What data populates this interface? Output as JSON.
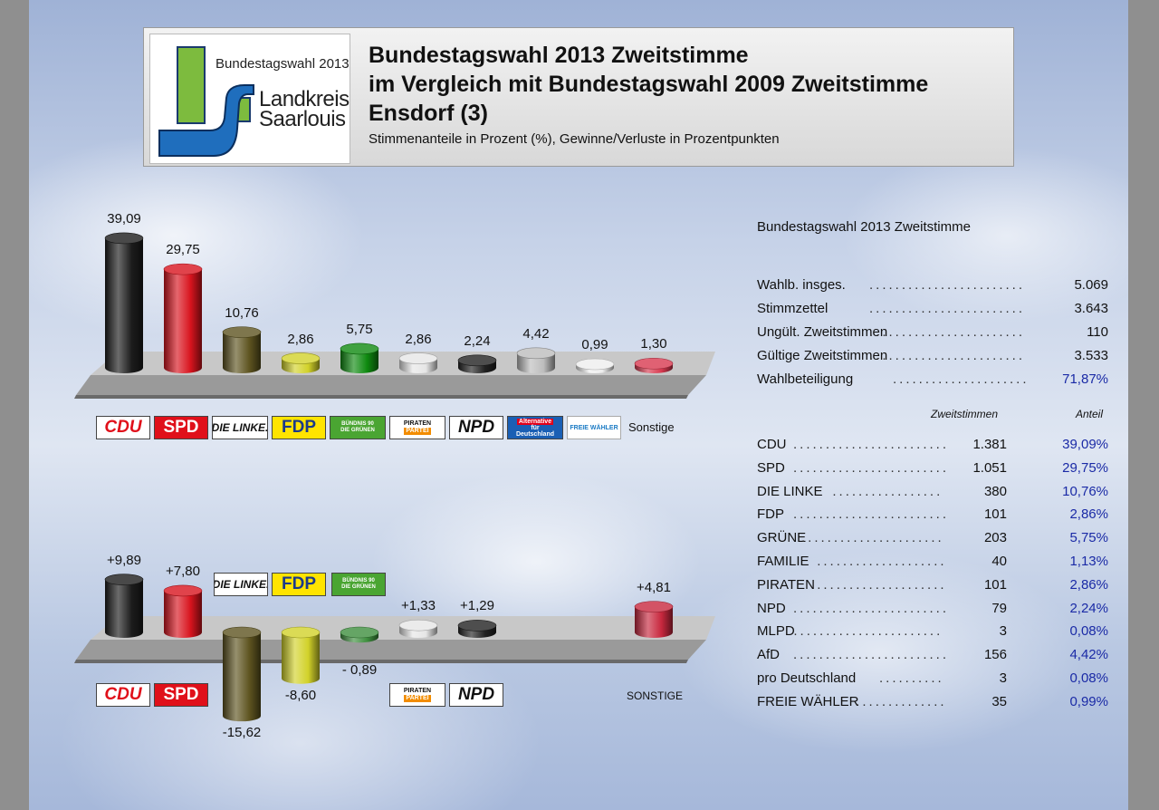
{
  "header": {
    "logo_top": "Bundestagswahl 2013",
    "logo_line1": "Landkreis",
    "logo_line2": "Saarlouis",
    "title_line1": "Bundestagswahl 2013 Zweitstimme",
    "title_line2": "im Vergleich mit Bundestagswahl 2009 Zweitstimme",
    "title_line3": "Ensdorf (3)",
    "subtitle": "Stimmenanteile in Prozent (%), Gewinne/Verluste in Prozentpunkten"
  },
  "chart_data": [
    {
      "type": "bar",
      "categories": [
        "CDU",
        "SPD",
        "DIE LINKE",
        "FDP",
        "GRÜNE",
        "PIRATEN",
        "NPD",
        "AfD",
        "FREIE WÄHLER",
        "Sonstige"
      ],
      "values": [
        39.09,
        29.75,
        10.76,
        2.86,
        5.75,
        2.86,
        2.24,
        4.42,
        0.99,
        1.3
      ],
      "labels": [
        "39,09",
        "29,75",
        "10,76",
        "2,86",
        "5,75",
        "2,86",
        "2,24",
        "4,42",
        "0,99",
        "1,30"
      ],
      "colors": [
        "#1c1c1c",
        "#d8141e",
        "#5e5420",
        "#d2d22a",
        "#0f8a10",
        "#e6e6e6",
        "#222222",
        "#bdbdbd",
        "#eeeeee",
        "#d83a50"
      ],
      "others_label": "Sonstige"
    },
    {
      "type": "bar",
      "categories": [
        "CDU",
        "SPD",
        "DIE LINKE",
        "FDP",
        "GRÜNE",
        "PIRATEN",
        "NPD",
        "SONSTIGE"
      ],
      "values": [
        9.89,
        7.8,
        -15.62,
        -8.6,
        -0.89,
        1.33,
        1.29,
        4.81
      ],
      "labels": [
        "+9,89",
        "+7,80",
        "-15,62",
        "-8,60",
        "- 0,89",
        "+1,33",
        "+1,29",
        "+4,81"
      ],
      "colors": [
        "#1c1c1c",
        "#d8141e",
        "#5e5420",
        "#d2d22a",
        "#3f8f3f",
        "#e6e6e6",
        "#222222",
        "#c8283e"
      ],
      "others_label": "SONSTIGE"
    }
  ],
  "party_logos": {
    "cdu": "CDU",
    "spd": "SPD",
    "linke": "DIE LINKE.",
    "fdp": "FDP",
    "gruene_l1": "BÜNDNIS 90",
    "gruene_l2": "DIE GRÜNEN",
    "piraten_l1": "PIRATEN",
    "piraten_l2": "PARTEI",
    "npd": "NPD",
    "afd_l1": "Alternative",
    "afd_l2": "für",
    "afd_l3": "Deutschland",
    "fw": "FREIE WÄHLER"
  },
  "stats": {
    "heading": "Bundestagswahl 2013 Zweitstimme",
    "rows": [
      {
        "label": "Wahlb. insges.",
        "value": "5.069"
      },
      {
        "label": "Stimmzettel",
        "value": "3.643"
      },
      {
        "label": "Ungült. Zweitstimmen",
        "value": "110"
      },
      {
        "label": "Gültige Zweitstimmen",
        "value": "3.533"
      },
      {
        "label": "Wahlbeteiligung",
        "value": "71,87%"
      }
    ],
    "col_votes": "Zweitstimmen",
    "col_share": "Anteil",
    "parties": [
      {
        "name": "CDU",
        "votes": "1.381",
        "share": "39,09%"
      },
      {
        "name": "SPD",
        "votes": "1.051",
        "share": "29,75%"
      },
      {
        "name": "DIE LINKE",
        "votes": "380",
        "share": "10,76%"
      },
      {
        "name": "FDP",
        "votes": "101",
        "share": "2,86%"
      },
      {
        "name": "GRÜNE",
        "votes": "203",
        "share": "5,75%"
      },
      {
        "name": "FAMILIE",
        "votes": "40",
        "share": "1,13%"
      },
      {
        "name": "PIRATEN",
        "votes": "101",
        "share": "2,86%"
      },
      {
        "name": "NPD",
        "votes": "79",
        "share": "2,24%"
      },
      {
        "name": "MLPD",
        "votes": "3",
        "share": "0,08%"
      },
      {
        "name": "AfD",
        "votes": "156",
        "share": "4,42%"
      },
      {
        "name": "pro Deutschland",
        "votes": "3",
        "share": "0,08%"
      },
      {
        "name": "FREIE WÄHLER",
        "votes": "35",
        "share": "0,99%"
      }
    ]
  }
}
